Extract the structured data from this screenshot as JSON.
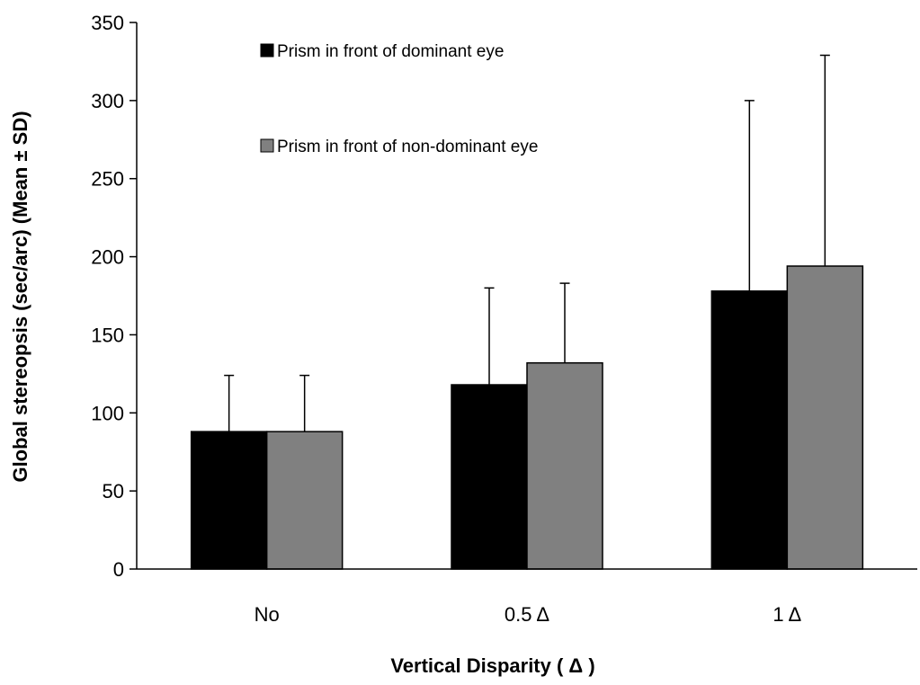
{
  "chart_data": {
    "type": "bar",
    "categories": [
      "No",
      "0.5 Δ",
      "1 Δ"
    ],
    "series": [
      {
        "name": "Prism in  front of dominant eye",
        "color": "#000000",
        "values": [
          88,
          118,
          178
        ],
        "error_sd": [
          36,
          62,
          122
        ]
      },
      {
        "name": "Prism in  front of non-dominant eye",
        "color": "#808080",
        "values": [
          88,
          132,
          194
        ],
        "error_sd": [
          36,
          51,
          135
        ]
      }
    ],
    "title": "",
    "xlabel": "Vertical Disparity ( Δ )",
    "ylabel": "Global stereopsis (sec/arc) (Mean ± SD)",
    "ylim": [
      0,
      350
    ],
    "yticks": [
      "0",
      "50",
      "100",
      "150",
      "200",
      "250",
      "300",
      "350"
    ],
    "grid": false,
    "legend_position": "top-left (inside plot)"
  }
}
